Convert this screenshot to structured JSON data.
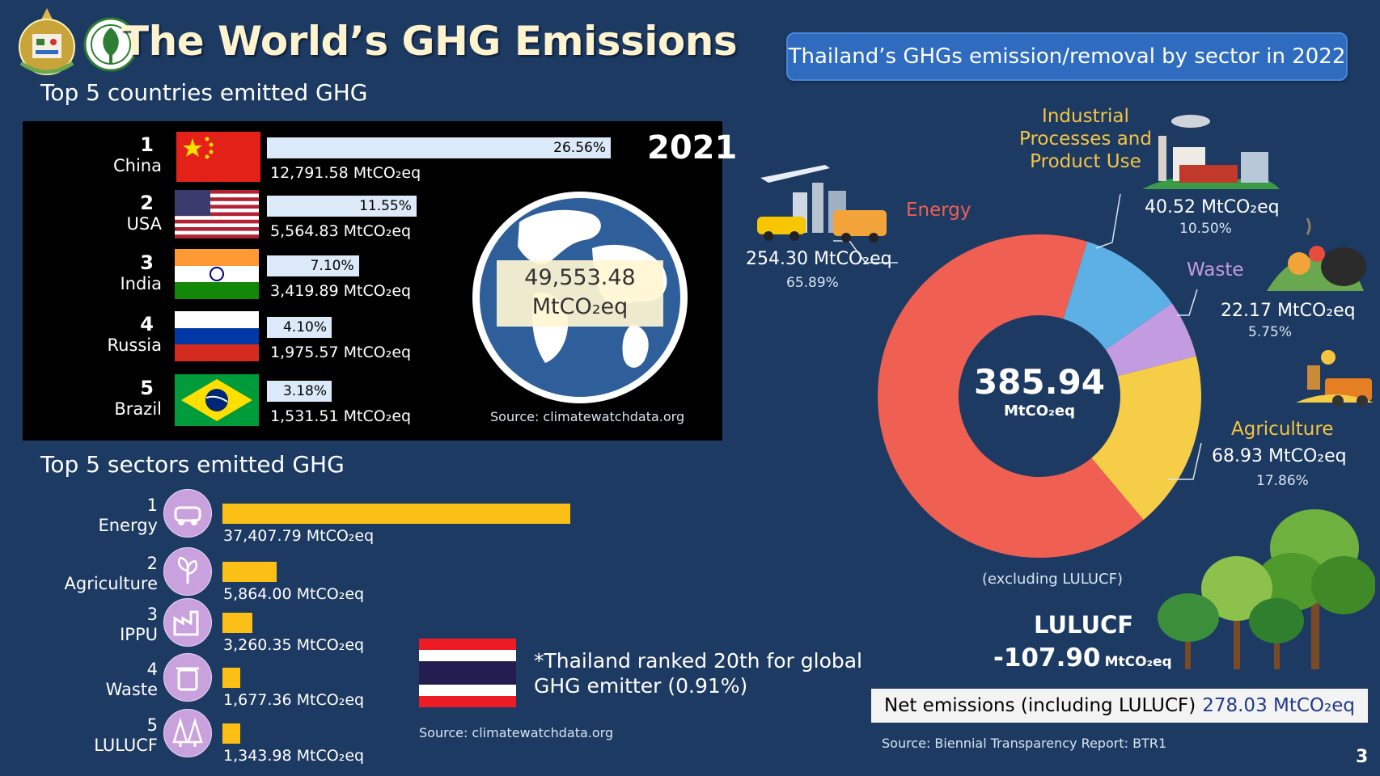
{
  "header": {
    "title": "The World’s GHG Emissions",
    "top_countries_heading": "Top 5 countries emitted GHG",
    "top_sectors_heading": "Top 5 sectors emitted GHG",
    "thai_banner": "Thailand’s GHGs emission/removal by sector in 2022"
  },
  "countries_panel": {
    "year": "2021",
    "globe_total_value": "49,553.48",
    "globe_total_unit": "MtCO₂eq",
    "source": "Source: climatewatchdata.org"
  },
  "sectors_panel": {
    "note_line1": "*Thailand ranked 20th for global",
    "note_line2": "GHG emitter (0.91%)",
    "source": "Source: climatewatchdata.org"
  },
  "thailand_panel": {
    "donut_center_value": "385.94",
    "donut_center_unit": "MtCO₂eq",
    "excluding_note": "(excluding LULUCF)",
    "lulucf_label": "LULUCF",
    "lulucf_value": "-107.90",
    "lulucf_unit": "MtCO₂eq",
    "net_label": "Net emissions (including LULUCF)",
    "net_value": "278.03 MtCO₂eq",
    "source": "Source: Biennial Transparency Report: BTR1",
    "page_number": "3"
  },
  "chart_data": [
    {
      "type": "bar",
      "orientation": "horizontal",
      "title": "Top 5 countries emitted GHG",
      "year": "2021",
      "ranks": [
        "1",
        "2",
        "3",
        "4",
        "5"
      ],
      "categories": [
        "China",
        "USA",
        "India",
        "Russia",
        "Brazil"
      ],
      "percent_labels": [
        "26.56%",
        "11.55%",
        "7.10%",
        "4.10%",
        "3.18%"
      ],
      "values": [
        12791.58,
        5564.83,
        3419.89,
        1975.57,
        1531.51
      ],
      "value_labels": [
        "12,791.58 MtCO₂eq",
        "5,564.83 MtCO₂eq",
        "3,419.89 MtCO₂eq",
        "1,975.57 MtCO₂eq",
        "1,531.51 MtCO₂eq"
      ],
      "colors": {
        "bar": "#dce9f8",
        "background": "#000000"
      }
    },
    {
      "type": "bar",
      "orientation": "horizontal",
      "title": "Top 5 sectors emitted GHG",
      "ranks": [
        "1",
        "2",
        "3",
        "4",
        "5"
      ],
      "categories": [
        "Energy",
        "Agriculture",
        "IPPU",
        "Waste",
        "LULUCF"
      ],
      "icons": [
        "car-icon",
        "plant-icon",
        "factory-icon",
        "trash-icon",
        "forest-icon"
      ],
      "values": [
        37407.79,
        5864.0,
        3260.35,
        1677.36,
        1343.98
      ],
      "value_labels": [
        "37,407.79 MtCO₂eq",
        "5,864.00 MtCO₂eq",
        "3,260.35 MtCO₂eq",
        "1,677.36 MtCO₂eq",
        "1,343.98 MtCO₂eq"
      ],
      "colors": {
        "bar": "#fbbf16"
      }
    },
    {
      "type": "pie",
      "variant": "donut",
      "title": "Thailand’s GHGs emission/removal by sector in 2022",
      "slices": [
        {
          "label": "Energy",
          "value": 254.3,
          "value_label": "254.30 MtCO₂eq",
          "percent": "65.89%",
          "color": "#ef5f52",
          "label_color": "#ef5f52"
        },
        {
          "label": "Industrial Processes and Product Use",
          "label_lines": [
            "Industrial",
            "Processes and",
            "Product Use"
          ],
          "value": 40.52,
          "value_label": "40.52 MtCO₂eq",
          "percent": "10.50%",
          "color": "#5cb0e6",
          "label_color": "#f5c542"
        },
        {
          "label": "Waste",
          "value": 22.17,
          "value_label": "22.17 MtCO₂eq",
          "percent": "5.75%",
          "color": "#c29be0",
          "label_color": "#c29be0"
        },
        {
          "label": "Agriculture",
          "value": 68.93,
          "value_label": "68.93 MtCO₂eq",
          "percent": "17.86%",
          "color": "#f6cd47",
          "label_color": "#f5c542"
        }
      ],
      "total": 385.94
    }
  ]
}
